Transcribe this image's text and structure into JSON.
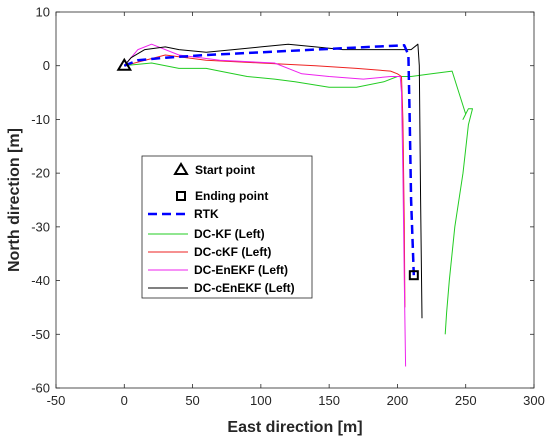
{
  "chart_data": {
    "type": "line",
    "xlabel": "East direction [m]",
    "ylabel": "North direction [m]",
    "xlim": [
      -50,
      300
    ],
    "ylim": [
      -60,
      10
    ],
    "xticks": [
      -50,
      0,
      50,
      100,
      150,
      200,
      250,
      300
    ],
    "yticks": [
      -60,
      -50,
      -40,
      -30,
      -20,
      -10,
      0,
      10
    ],
    "xtick_labels": [
      "-50",
      "0",
      "50",
      "100",
      "150",
      "200",
      "250",
      "300"
    ],
    "ytick_labels": [
      "-60",
      "-50",
      "-40",
      "-30",
      "-20",
      "-10",
      "0",
      "10"
    ],
    "grid": false,
    "legend_position": "center-left",
    "markers": [
      {
        "name": "Start point",
        "shape": "triangle",
        "x": 0,
        "y": 0
      },
      {
        "name": "Ending point",
        "shape": "square",
        "x": 212,
        "y": -39
      }
    ],
    "series": [
      {
        "name": "RTK",
        "color": "#0000ff",
        "style": "dashed",
        "x": [
          0,
          10,
          30,
          60,
          100,
          140,
          180,
          205,
          208,
          209,
          210,
          212
        ],
        "y": [
          0,
          1,
          1.5,
          2,
          2.5,
          3,
          3.5,
          3.8,
          2,
          -10,
          -25,
          -39
        ]
      },
      {
        "name": "DC-KF (Left)",
        "color": "#22cc22",
        "style": "solid",
        "x": [
          0,
          20,
          40,
          60,
          70,
          90,
          110,
          125,
          150,
          170,
          190,
          200,
          210,
          225,
          240,
          245,
          250,
          248,
          252,
          255,
          252,
          248,
          242,
          238,
          236,
          235
        ],
        "y": [
          0,
          0.5,
          -0.5,
          -0.5,
          -1,
          -2,
          -2.5,
          -3,
          -4,
          -4,
          -3,
          -2,
          -2,
          -1.5,
          -1,
          -5,
          -9,
          -10,
          -8,
          -8,
          -11,
          -20,
          -30,
          -40,
          -46,
          -50
        ]
      },
      {
        "name": "DC-cKF (Left)",
        "color": "#ee2222",
        "style": "solid",
        "x": [
          0,
          30,
          60,
          100,
          140,
          170,
          195,
          200,
          203,
          204,
          205,
          205.5
        ],
        "y": [
          0,
          2,
          1,
          0.5,
          0,
          -0.5,
          -1,
          -1.5,
          -2,
          -10,
          -30,
          -45
        ]
      },
      {
        "name": "DC-EnEKF (Left)",
        "color": "#ee22ee",
        "style": "solid",
        "x": [
          0,
          10,
          20,
          40,
          70,
          110,
          130,
          150,
          175,
          195,
          200,
          202,
          203,
          204,
          205,
          206
        ],
        "y": [
          0,
          3,
          4,
          2,
          1,
          0.5,
          -1.5,
          -2,
          -2.5,
          -2,
          -2,
          -2,
          -5,
          -20,
          -40,
          -56
        ]
      },
      {
        "name": "DC-cEnEKF (Left)",
        "color": "#000000",
        "style": "solid",
        "x": [
          0,
          5,
          15,
          30,
          40,
          60,
          80,
          100,
          120,
          140,
          160,
          180,
          200,
          210,
          215,
          216,
          217,
          218
        ],
        "y": [
          0,
          1.5,
          3,
          3.5,
          3,
          2.5,
          3,
          3.5,
          4,
          3.5,
          3,
          3,
          3,
          3,
          4,
          0,
          -25,
          -47
        ]
      }
    ]
  }
}
